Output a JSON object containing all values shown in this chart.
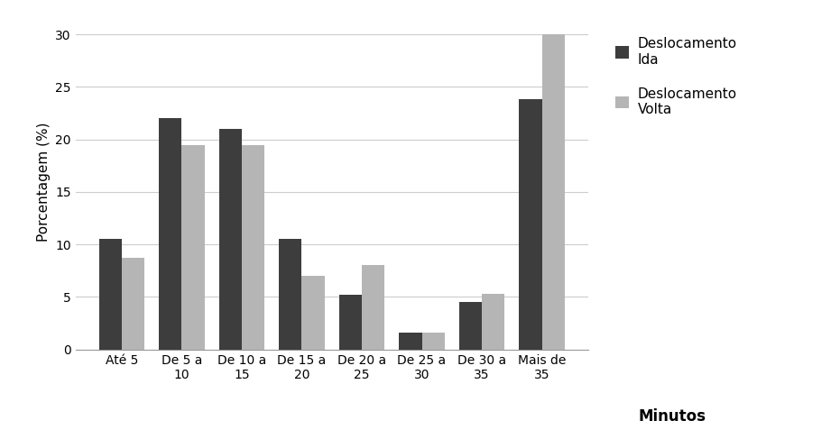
{
  "categories": [
    "Até 5",
    "De 5 a\n10",
    "De 10 a\n15",
    "De 15 a\n20",
    "De 20 a\n25",
    "De 25 a\n30",
    "De 30 a\n35",
    "Mais de\n35"
  ],
  "ida_values": [
    10.5,
    22.0,
    21.0,
    10.5,
    5.2,
    1.6,
    4.5,
    23.8
  ],
  "volta_values": [
    8.7,
    19.5,
    19.5,
    7.0,
    8.0,
    1.6,
    5.3,
    30.0
  ],
  "bar_color_ida": "#3d3d3d",
  "bar_color_volta": "#b5b5b5",
  "ylabel": "Porcentagem (%)",
  "xlabel": "Minutos",
  "ylim": [
    0,
    32
  ],
  "yticks": [
    0,
    5,
    10,
    15,
    20,
    25,
    30
  ],
  "legend_labels": [
    "Deslocamento\nIda",
    "Deslocamento\nVolta"
  ],
  "bar_width": 0.38,
  "grid_color": "#cccccc",
  "background_color": "#ffffff"
}
